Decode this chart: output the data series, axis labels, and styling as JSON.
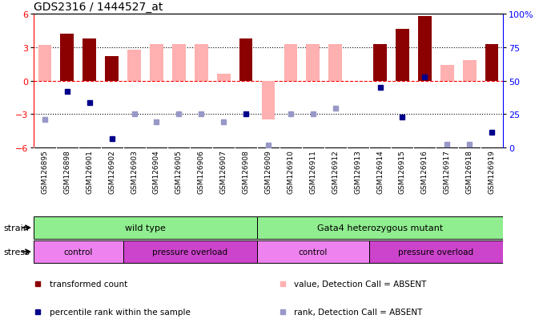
{
  "title": "GDS2316 / 1444527_at",
  "samples": [
    "GSM126895",
    "GSM126898",
    "GSM126901",
    "GSM126902",
    "GSM126903",
    "GSM126904",
    "GSM126905",
    "GSM126906",
    "GSM126907",
    "GSM126908",
    "GSM126909",
    "GSM126910",
    "GSM126911",
    "GSM126912",
    "GSM126913",
    "GSM126914",
    "GSM126915",
    "GSM126916",
    "GSM126917",
    "GSM126918",
    "GSM126919"
  ],
  "bar_values": [
    null,
    4.2,
    3.8,
    2.2,
    null,
    null,
    null,
    null,
    null,
    3.8,
    null,
    null,
    null,
    null,
    null,
    3.3,
    4.6,
    5.8,
    null,
    null,
    3.3
  ],
  "bar_absent_values": [
    3.2,
    null,
    null,
    null,
    2.8,
    3.3,
    3.3,
    3.3,
    0.6,
    null,
    -3.5,
    3.3,
    3.3,
    3.3,
    null,
    null,
    null,
    null,
    1.4,
    1.8,
    null
  ],
  "rank_values": [
    null,
    -1.0,
    -2.0,
    -5.2,
    null,
    null,
    null,
    null,
    null,
    -3.0,
    null,
    null,
    null,
    null,
    null,
    -0.6,
    -3.3,
    0.3,
    null,
    null,
    -4.6
  ],
  "rank_absent_values": [
    -3.5,
    null,
    null,
    null,
    -3.0,
    -3.7,
    -3.0,
    -3.0,
    -3.7,
    null,
    -5.8,
    -3.0,
    -3.0,
    -2.5,
    null,
    null,
    null,
    null,
    -5.7,
    -5.7,
    null
  ],
  "strain_labels": [
    "wild type",
    "Gata4 heterozygous mutant"
  ],
  "strain_ranges": [
    [
      0,
      10
    ],
    [
      10,
      21
    ]
  ],
  "stress_labels": [
    "control",
    "pressure overload",
    "control",
    "pressure overload"
  ],
  "stress_ranges": [
    [
      0,
      4
    ],
    [
      4,
      10
    ],
    [
      10,
      15
    ],
    [
      15,
      21
    ]
  ],
  "stress_alt_colors": [
    true,
    false,
    true,
    false
  ],
  "ylim_left": [
    -6,
    6
  ],
  "ylim_right": [
    0,
    100
  ],
  "yticks_left": [
    -6,
    -3,
    0,
    3,
    6
  ],
  "yticks_right": [
    0,
    25,
    50,
    75,
    100
  ],
  "bar_color": "#8b0000",
  "bar_absent_color": "#ffb0b0",
  "rank_color": "#00008b",
  "rank_absent_color": "#9898c8",
  "strain_color": "#90ee90",
  "stress_color_light": "#ee82ee",
  "stress_color_dark": "#cc44cc",
  "label_bg": "#cccccc",
  "legend_items": [
    [
      "#8b0000",
      "transformed count"
    ],
    [
      "#00008b",
      "percentile rank within the sample"
    ],
    [
      "#ffb0b0",
      "value, Detection Call = ABSENT"
    ],
    [
      "#9898c8",
      "rank, Detection Call = ABSENT"
    ]
  ]
}
